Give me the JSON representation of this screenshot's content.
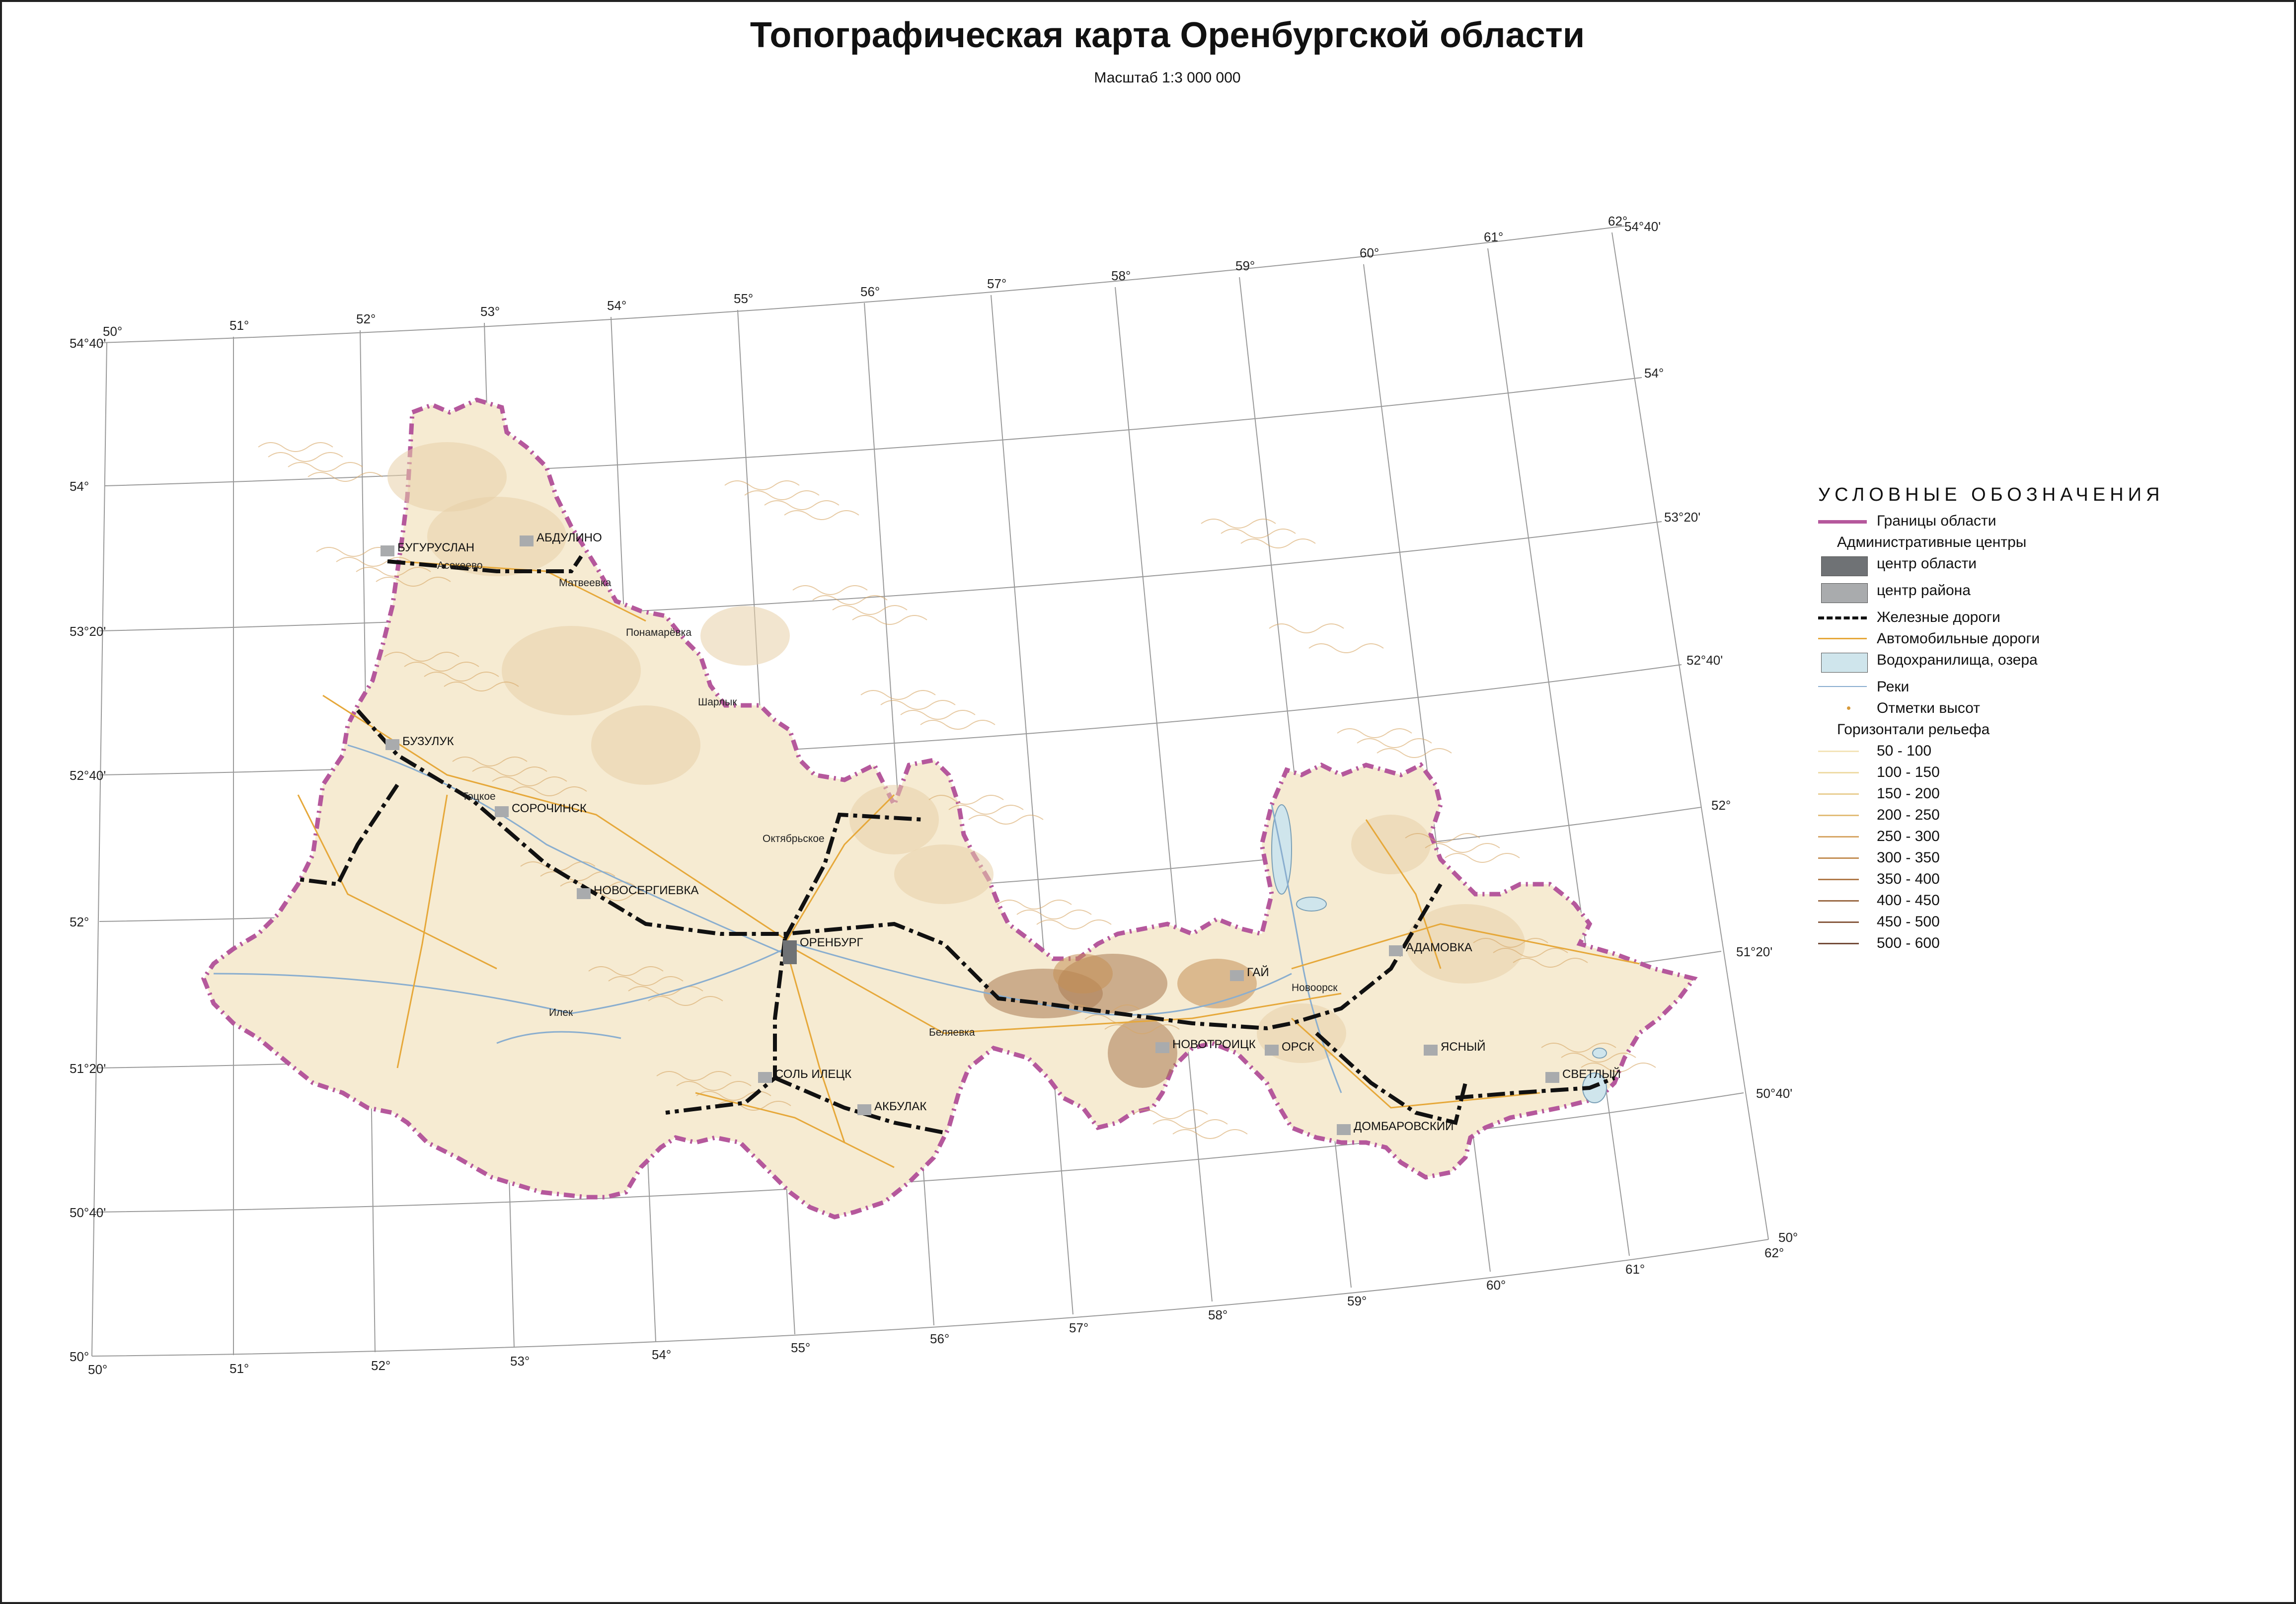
{
  "title": "Топографическая карта Оренбургской области",
  "scale": "Масштаб 1:3 000 000",
  "colors": {
    "border": "#b5589c",
    "fill": "#f6ebd2",
    "fill_high": "#e8cfa7",
    "relief_dark": "#a97a52",
    "grid": "#9a9a9a",
    "roads": "#e6a83a",
    "rail": "#111111",
    "water": "#cfe5ec",
    "rivers": "#8aaecf",
    "center_region": "#6f7275",
    "center_district": "#a9abad"
  },
  "graticule": {
    "left_lat_labels": [
      "54°40'",
      "54°",
      "53°20'",
      "52°40'",
      "52°",
      "51°20'",
      "50°40'",
      "50°"
    ],
    "right_lat_labels": [
      "54°40'",
      "54°",
      "53°20'",
      "52°40'",
      "52°",
      "51°20'",
      "50°40'",
      "50°"
    ],
    "top_lon_labels": [
      "50°",
      "51°",
      "52°",
      "53°",
      "54°",
      "55°",
      "56°",
      "57°",
      "58°",
      "59°",
      "60°",
      "61°",
      "62°"
    ],
    "bottom_lon_labels": [
      "50°",
      "51°",
      "52°",
      "53°",
      "54°",
      "55°",
      "56°",
      "57°",
      "58°",
      "59°",
      "60°",
      "61°",
      "62°"
    ]
  },
  "places": {
    "district_centers": [
      "БУГУРУСЛАН",
      "АБДУЛИНО",
      "БУЗУЛУК",
      "СОРОЧИНСК",
      "НОВОСЕРГИЕВКА",
      "ОРЕНБУРГ",
      "СОЛЬ ИЛЕЦК",
      "АКБУЛАК",
      "ГАЙ",
      "НОВОТРОИЦК",
      "ОРСК",
      "АДАМОВКА",
      "ЯСНЫЙ",
      "СВЕТЛЫЙ",
      "ДОМБАРОВСКИЙ"
    ],
    "settlements": [
      "Асекеево",
      "Матвеевка",
      "Понамарёвка",
      "Шарлык",
      "Тоцкое",
      "Октябрьское",
      "Илек",
      "Беляевка",
      "Новоорск"
    ]
  },
  "legend": {
    "title": "УСЛОВНЫЕ ОБОЗНАЧЕНИЯ",
    "border": "Границы области",
    "admin_header": "Административные центры",
    "center_region": "центр области",
    "center_district": "центр района",
    "railways": "Железные дороги",
    "roads": "Автомобильные дороги",
    "water": "Водохранилища, озера",
    "rivers": "Реки",
    "heights": "Отметки высот",
    "contours_header": "Горизонтали рельефа",
    "contours": [
      {
        "label": "50 - 100",
        "color": "#f3e4b8"
      },
      {
        "label": "100 - 150",
        "color": "#eedba6"
      },
      {
        "label": "150 - 200",
        "color": "#e9cf93"
      },
      {
        "label": "200 - 250",
        "color": "#e2bd79"
      },
      {
        "label": "250 - 300",
        "color": "#d7a766"
      },
      {
        "label": "300 - 350",
        "color": "#c48f55"
      },
      {
        "label": "350 - 400",
        "color": "#b07a4a"
      },
      {
        "label": "400 - 450",
        "color": "#9a6a45"
      },
      {
        "label": "450 - 500",
        "color": "#875a3f"
      },
      {
        "label": "500 - 600",
        "color": "#744c39"
      }
    ]
  }
}
